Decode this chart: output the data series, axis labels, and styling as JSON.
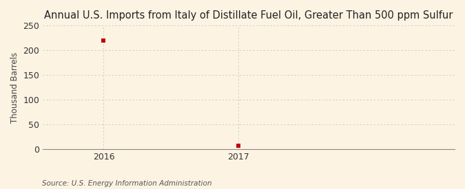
{
  "title": "Annual U.S. Imports from Italy of Distillate Fuel Oil, Greater Than 500 ppm Sulfur",
  "ylabel": "Thousand Barrels",
  "source_text": "Source: U.S. Energy Information Administration",
  "x_values": [
    2016,
    2017
  ],
  "y_values": [
    219,
    8
  ],
  "ylim": [
    0,
    250
  ],
  "yticks": [
    0,
    50,
    100,
    150,
    200,
    250
  ],
  "xlim": [
    2015.55,
    2018.6
  ],
  "xticks": [
    2016,
    2017
  ],
  "marker_color": "#c00000",
  "marker_size": 5,
  "background_color": "#fdf3e3",
  "grid_color": "#c8c8c8",
  "title_fontsize": 10.5,
  "ylabel_fontsize": 8.5,
  "tick_fontsize": 9,
  "source_fontsize": 7.5
}
